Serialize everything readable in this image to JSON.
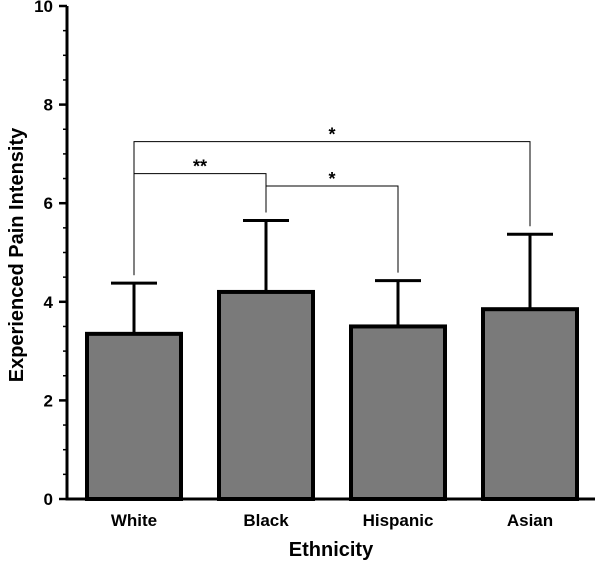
{
  "chart_data": {
    "type": "bar",
    "title": "",
    "xlabel": "Ethnicity",
    "ylabel": "Experienced Pain Intensity",
    "ylim": [
      0,
      10
    ],
    "yticks": [
      "0",
      "2",
      "4",
      "6",
      "8",
      "10"
    ],
    "grid": false,
    "categories": [
      "White",
      "Black",
      "Hispanic",
      "Asian"
    ],
    "values": [
      3.35,
      4.2,
      3.5,
      3.85
    ],
    "error_upper": [
      1.03,
      1.45,
      0.93,
      1.52
    ],
    "bar_color": "#7a7a7a",
    "edge_color": "#000000",
    "significance": [
      {
        "from": 0,
        "to": 3,
        "label": "*",
        "level": 7.25
      },
      {
        "from": 0,
        "to": 1,
        "label": "**",
        "level": 6.6
      },
      {
        "from": 1,
        "to": 2,
        "label": "*",
        "level": 6.35
      }
    ]
  }
}
